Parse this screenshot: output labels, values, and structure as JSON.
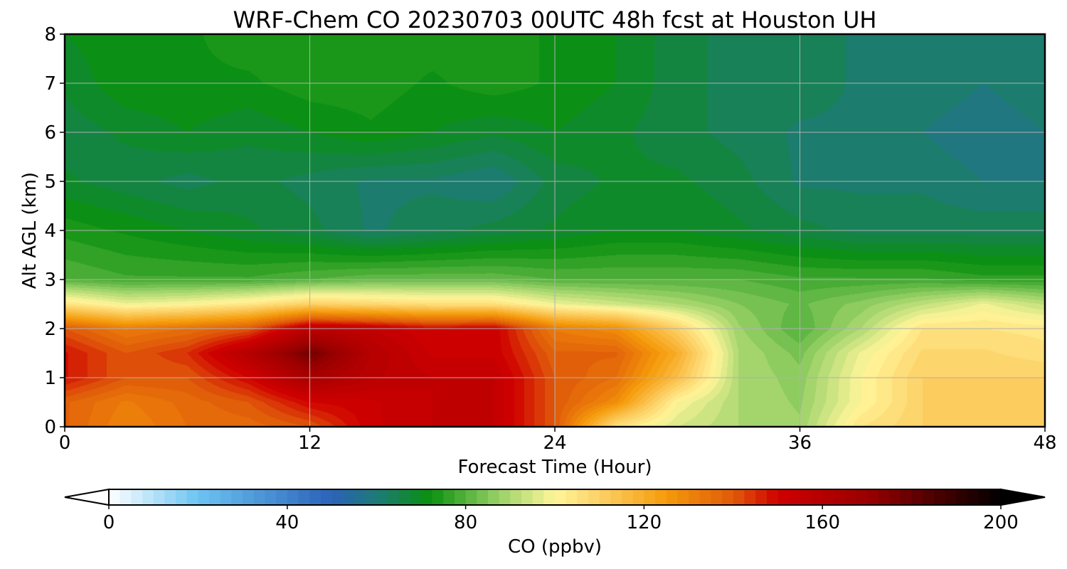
{
  "chart_data": {
    "type": "heatmap",
    "title": "WRF-Chem CO  20230703 00UTC 48h fcst at Houston UH",
    "xlabel": "Forecast Time (Hour)",
    "ylabel": "Alt AGL (km)",
    "xlim": [
      0,
      48
    ],
    "ylim": [
      0,
      8
    ],
    "x_ticks": [
      0,
      12,
      24,
      36,
      48
    ],
    "y_ticks": [
      0,
      1,
      2,
      3,
      4,
      5,
      6,
      7,
      8
    ],
    "grid": true,
    "colorbar": {
      "label": "CO  (ppbv)",
      "range": [
        0,
        200
      ],
      "ticks": [
        0,
        40,
        80,
        120,
        160,
        200
      ],
      "extend": "both",
      "orientation": "horizontal",
      "stops": [
        {
          "v": 0,
          "c": "#ffffff"
        },
        {
          "v": 20,
          "c": "#6cc4f2"
        },
        {
          "v": 50,
          "c": "#2a62b8"
        },
        {
          "v": 60,
          "c": "#1e7a78"
        },
        {
          "v": 72,
          "c": "#0a900e"
        },
        {
          "v": 88,
          "c": "#9ed36a"
        },
        {
          "v": 100,
          "c": "#fff69a"
        },
        {
          "v": 110,
          "c": "#fdd066"
        },
        {
          "v": 125,
          "c": "#f59a0a"
        },
        {
          "v": 140,
          "c": "#e05a0a"
        },
        {
          "v": 150,
          "c": "#d00000"
        },
        {
          "v": 170,
          "c": "#9a0000"
        },
        {
          "v": 200,
          "c": "#000000"
        }
      ]
    },
    "x": [
      0,
      3,
      6,
      9,
      12,
      15,
      18,
      21,
      24,
      27,
      30,
      33,
      36,
      39,
      42,
      45,
      48
    ],
    "y": [
      0,
      0.5,
      1,
      1.5,
      2,
      2.5,
      3,
      4,
      5,
      6,
      7,
      8
    ],
    "z": [
      [
        138,
        130,
        135,
        136,
        140,
        152,
        155,
        155,
        140,
        105,
        95,
        90,
        88,
        105,
        110,
        110,
        112
      ],
      [
        138,
        132,
        136,
        140,
        150,
        152,
        155,
        155,
        140,
        128,
        100,
        90,
        87,
        100,
        110,
        110,
        112
      ],
      [
        148,
        140,
        140,
        150,
        165,
        158,
        155,
        155,
        140,
        135,
        115,
        90,
        86,
        100,
        110,
        110,
        110
      ],
      [
        148,
        140,
        145,
        160,
        178,
        160,
        152,
        152,
        138,
        138,
        120,
        90,
        84,
        98,
        108,
        108,
        106
      ],
      [
        140,
        132,
        135,
        140,
        158,
        155,
        150,
        152,
        132,
        128,
        110,
        88,
        80,
        90,
        105,
        105,
        104
      ],
      [
        105,
        98,
        100,
        104,
        110,
        108,
        106,
        106,
        98,
        94,
        90,
        85,
        82,
        86,
        92,
        98,
        92
      ],
      [
        80,
        78,
        78,
        78,
        80,
        82,
        82,
        82,
        80,
        80,
        80,
        80,
        78,
        78,
        78,
        76,
        76
      ],
      [
        74,
        72,
        70,
        68,
        66,
        62,
        64,
        66,
        68,
        70,
        70,
        68,
        66,
        64,
        64,
        64,
        64
      ],
      [
        68,
        66,
        64,
        66,
        64,
        62,
        62,
        60,
        66,
        68,
        68,
        66,
        62,
        62,
        62,
        60,
        60
      ],
      [
        66,
        68,
        70,
        68,
        70,
        72,
        70,
        68,
        70,
        68,
        66,
        64,
        62,
        62,
        60,
        58,
        60
      ],
      [
        68,
        72,
        72,
        72,
        74,
        74,
        72,
        74,
        72,
        70,
        66,
        64,
        64,
        62,
        62,
        60,
        62
      ],
      [
        70,
        72,
        72,
        74,
        74,
        74,
        74,
        74,
        72,
        70,
        66,
        64,
        64,
        62,
        62,
        62,
        62
      ]
    ]
  }
}
